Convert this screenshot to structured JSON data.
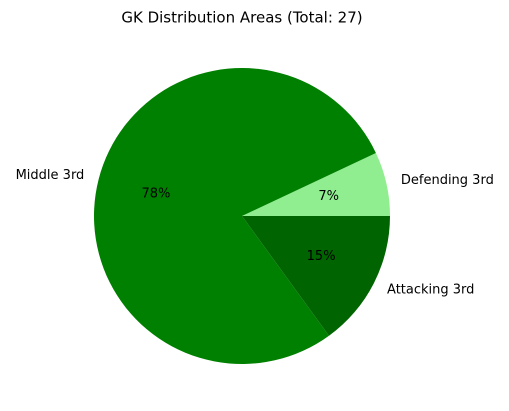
{
  "chart_data": {
    "type": "pie",
    "title": "GK Distribution Areas (Total: 27)",
    "categories": [
      "Defending 3rd",
      "Middle 3rd",
      "Attacking 3rd"
    ],
    "values": [
      7,
      78,
      15
    ],
    "value_labels": [
      "7%",
      "78%",
      "15%"
    ],
    "colors": [
      "#90ee90",
      "#008000",
      "#006400"
    ]
  }
}
